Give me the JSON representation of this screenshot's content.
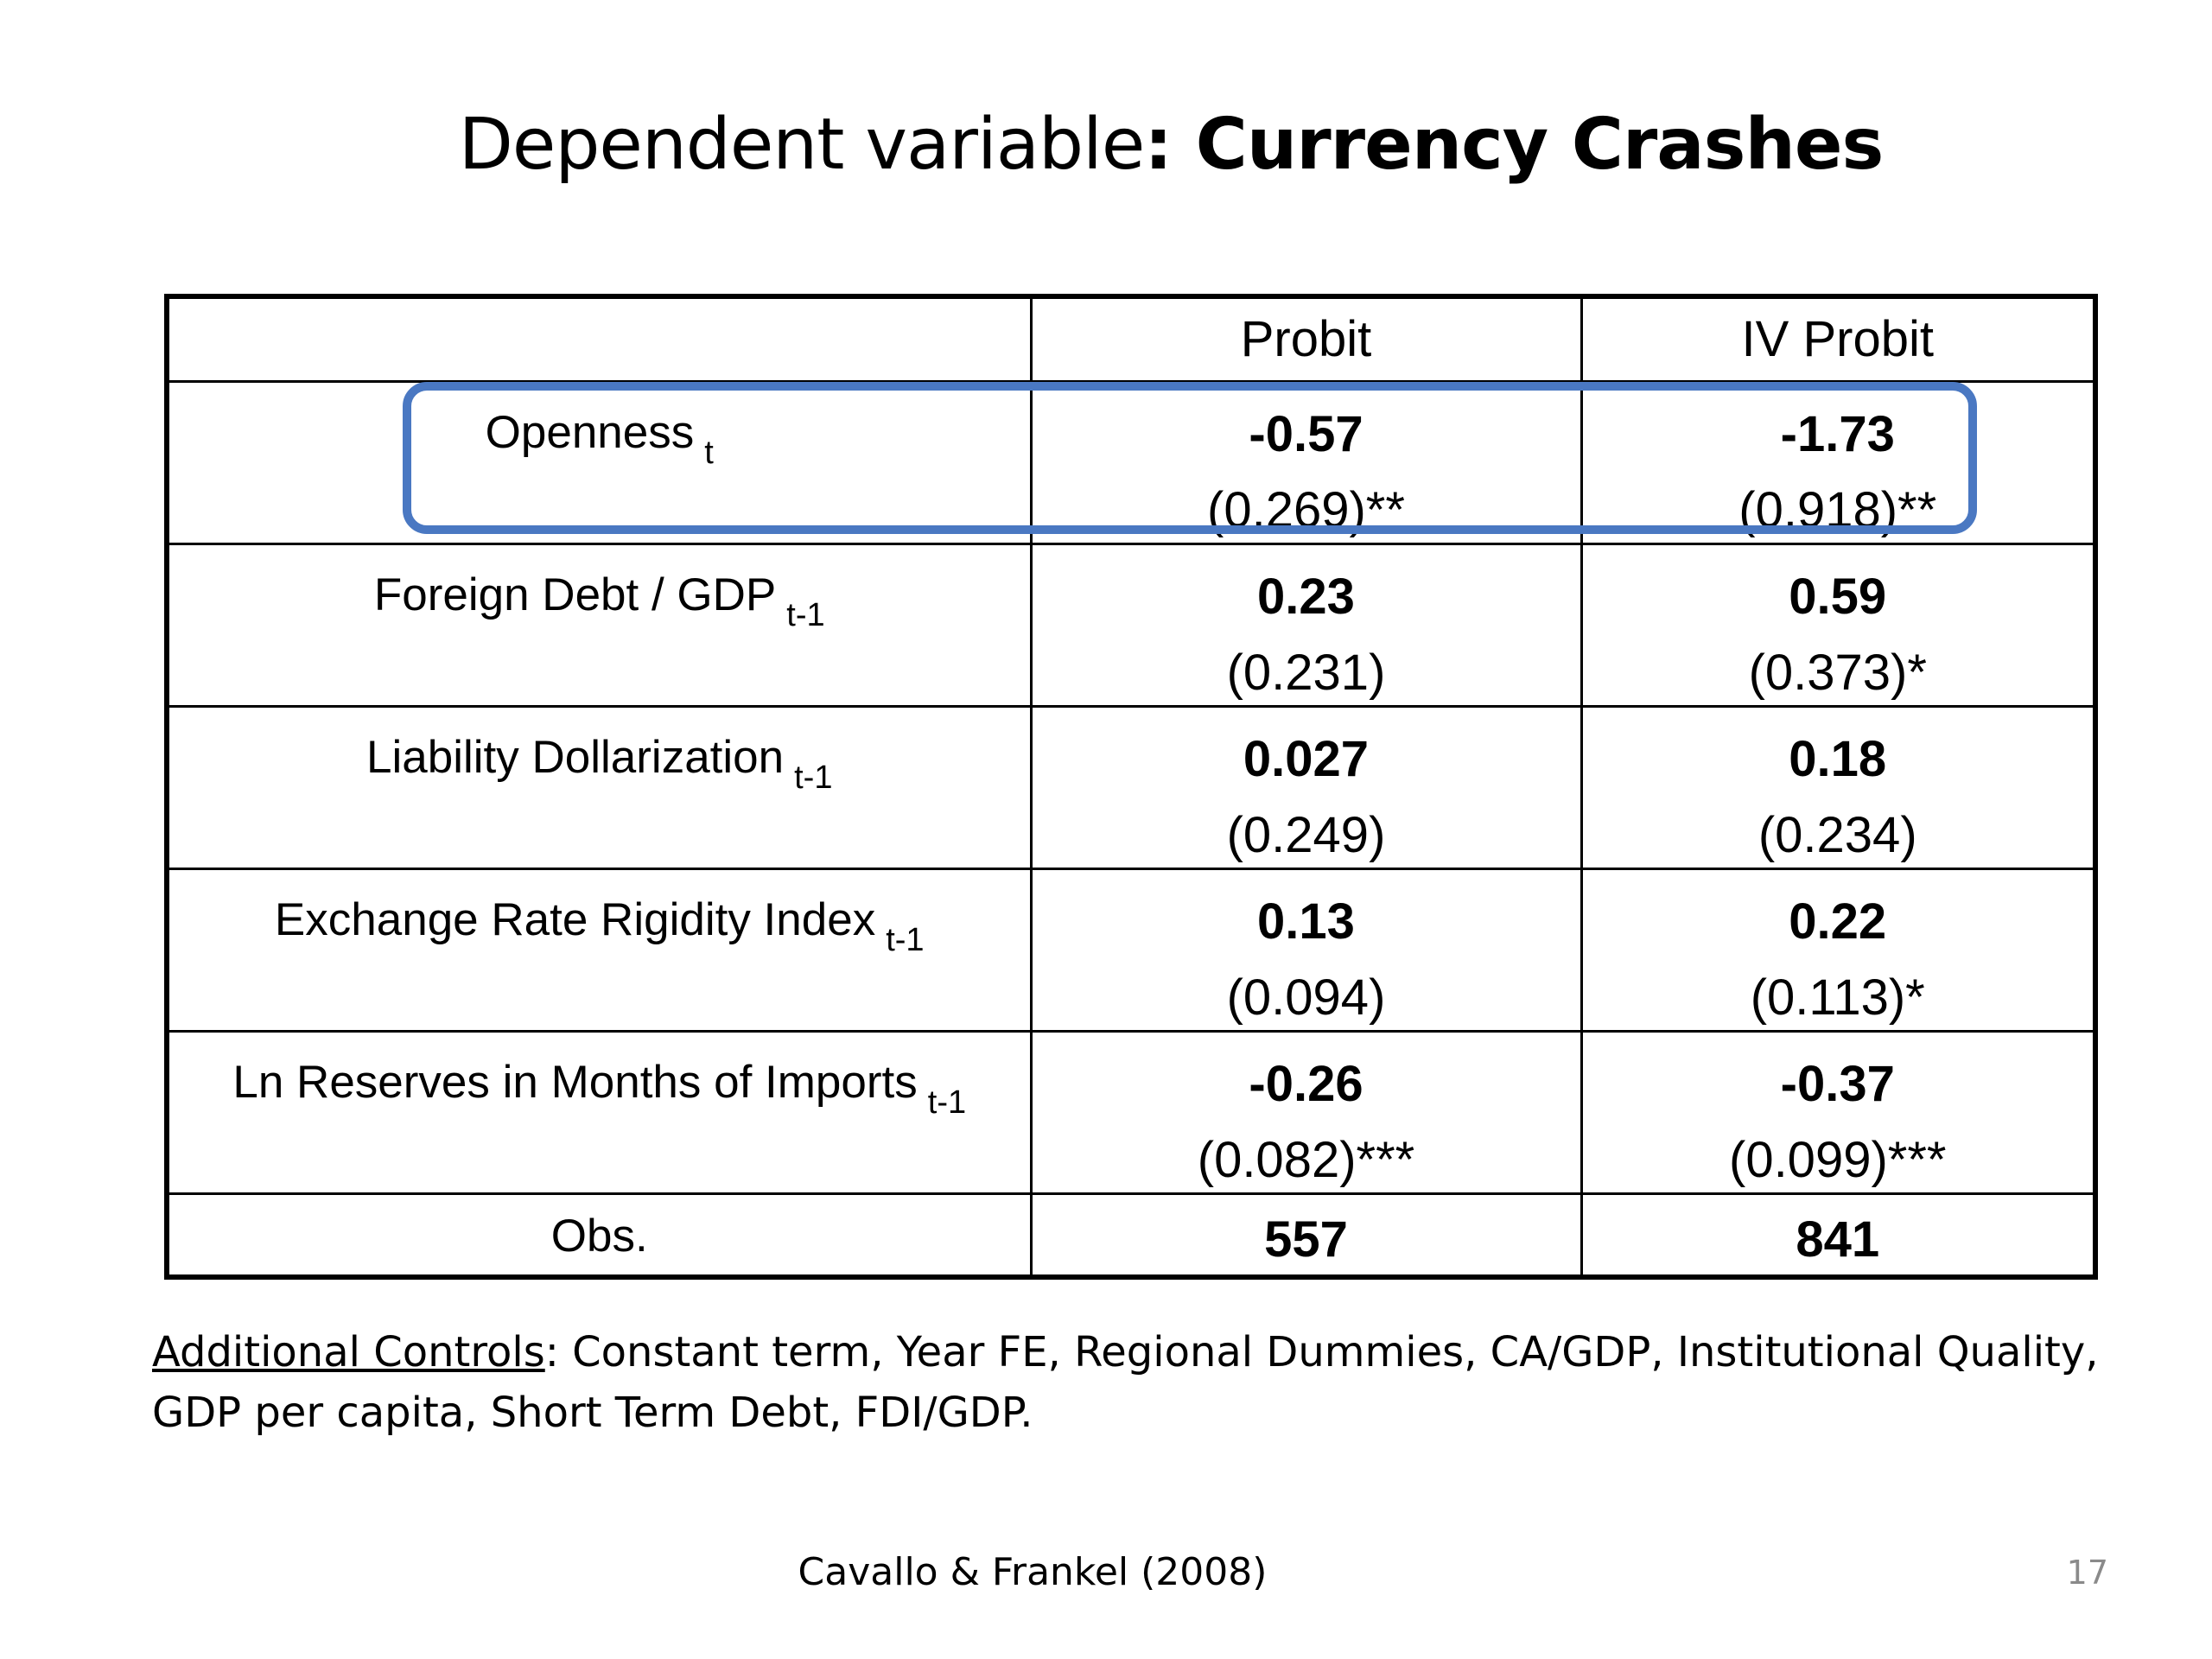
{
  "title": {
    "prefix": "Dependent variable",
    "colon": ":",
    "bold": "Currency Crashes"
  },
  "table": {
    "headers": [
      "",
      "Probit",
      "IV Probit"
    ],
    "rows": [
      {
        "name": "Openness",
        "sub": "t",
        "probit_coef": "-0.57",
        "probit_se": "(0.269)**",
        "iv_coef": "-1.73",
        "iv_se": "(0.918)**"
      },
      {
        "name": "Foreign Debt / GDP",
        "sub": "t-1",
        "probit_coef": "0.23",
        "probit_se": "(0.231)",
        "iv_coef": "0.59",
        "iv_se": "(0.373)*"
      },
      {
        "name": "Liability Dollarization",
        "sub": "t-1",
        "probit_coef": "0.027",
        "probit_se": "(0.249)",
        "iv_coef": "0.18",
        "iv_se": "(0.234)"
      },
      {
        "name": "Exchange Rate Rigidity Index",
        "sub": "t-1",
        "probit_coef": "0.13",
        "probit_se": "(0.094)",
        "iv_coef": "0.22",
        "iv_se": "(0.113)*"
      },
      {
        "name": "Ln Reserves in Months of Imports",
        "sub": "t-1",
        "probit_coef": "-0.26",
        "probit_se": "(0.082)***",
        "iv_coef": "-0.37",
        "iv_se": "(0.099)***"
      }
    ],
    "obs": {
      "label": "Obs.",
      "probit": "557",
      "iv": "841"
    },
    "highlight_color": "#4a78c2"
  },
  "controls": {
    "label": "Additional Controls",
    "text": ": Constant term, Year FE, Regional Dummies, CA/GDP, Institutional Quality, GDP per capita, Short Term Debt, FDI/GDP."
  },
  "footer": {
    "citation": "Cavallo & Frankel (2008)",
    "page_number": "17"
  }
}
